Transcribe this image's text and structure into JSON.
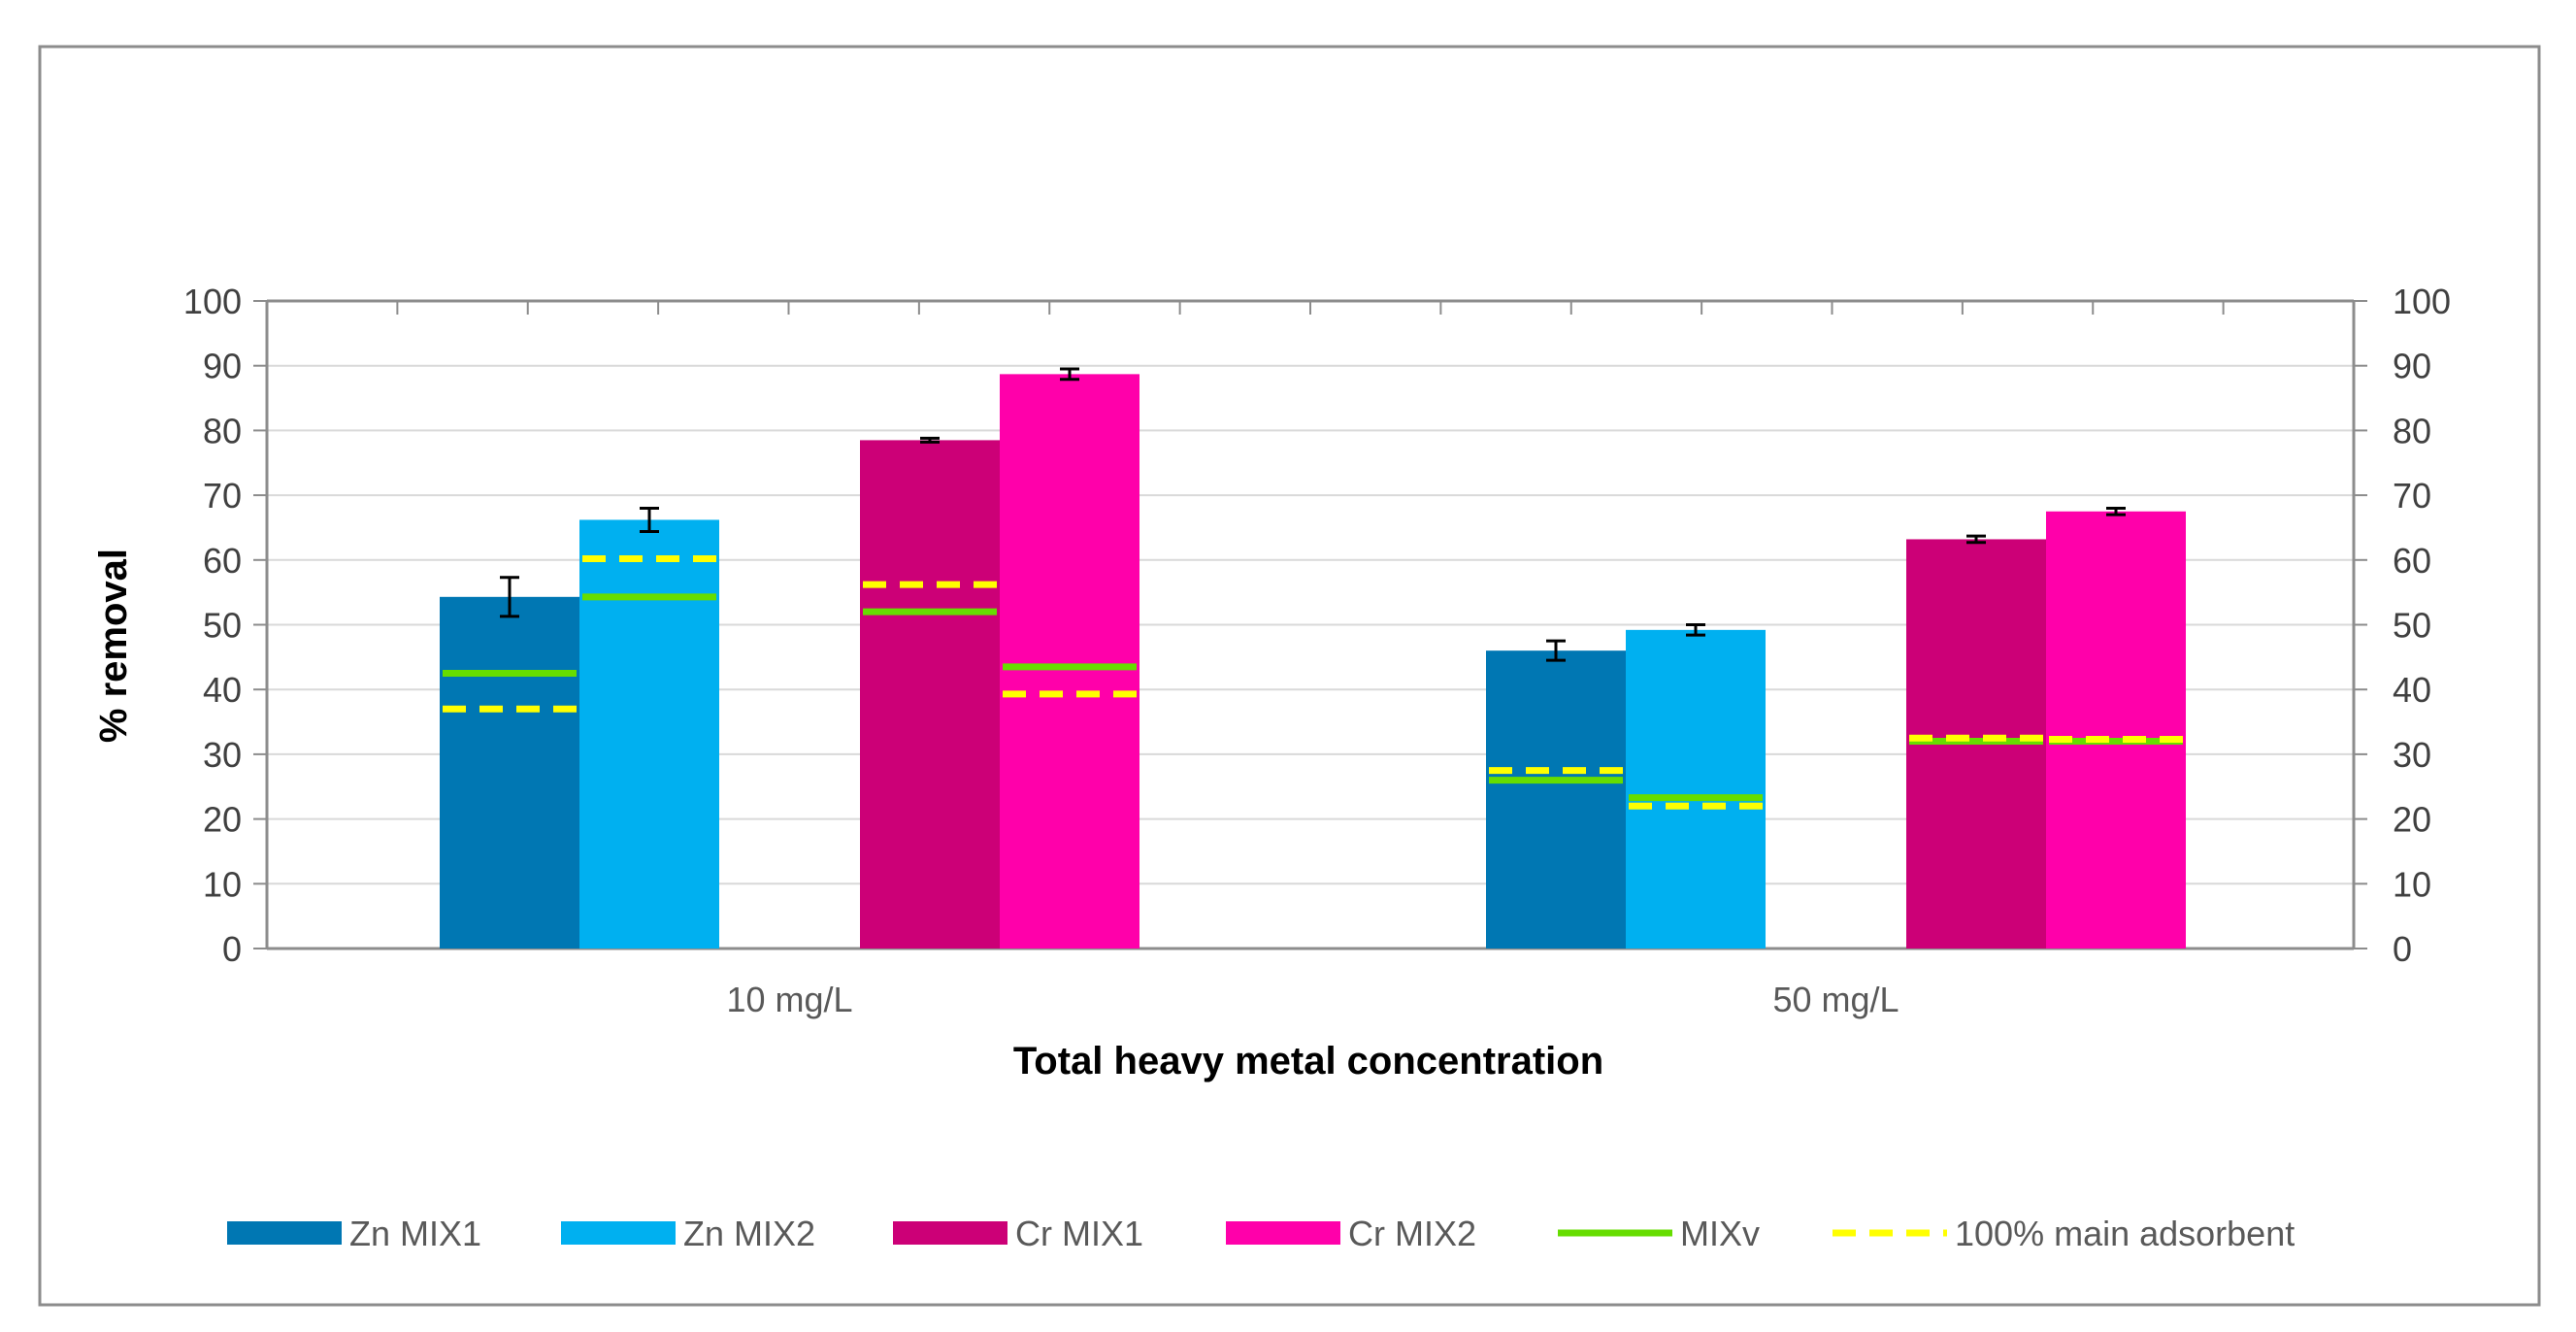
{
  "chart_data": {
    "type": "bar",
    "title": "",
    "xlabel": "Total heavy metal concentration",
    "ylabel": "% removal",
    "ylim": [
      0,
      100
    ],
    "yticks": [
      0,
      10,
      20,
      30,
      40,
      50,
      60,
      70,
      80,
      90,
      100
    ],
    "categories": [
      "10 mg/L",
      "50 mg/L"
    ],
    "grid": true,
    "legend_position": "bottom",
    "series": [
      {
        "name": "Zn MIX1",
        "color": "#0077B3",
        "values": [
          54.3,
          46.0
        ],
        "errors": [
          3.0,
          1.5
        ],
        "mixv": [
          42.5,
          26.0
        ],
        "main_adsorbent": [
          37.0,
          27.5
        ]
      },
      {
        "name": "Zn MIX2",
        "color": "#00B0F0",
        "values": [
          66.2,
          49.2
        ],
        "errors": [
          1.8,
          0.8
        ],
        "mixv": [
          54.3,
          23.3
        ],
        "main_adsorbent": [
          60.2,
          22.0
        ]
      },
      {
        "name": "Cr MIX1",
        "color": "#CC0077",
        "values": [
          78.5,
          63.2
        ],
        "errors": [
          0.3,
          0.5
        ],
        "mixv": [
          52.0,
          32.0
        ],
        "main_adsorbent": [
          56.2,
          32.5
        ]
      },
      {
        "name": "Cr MIX2",
        "color": "#FF00AA",
        "values": [
          88.7,
          67.5
        ],
        "errors": [
          0.8,
          0.5
        ],
        "mixv": [
          43.5,
          32.0
        ],
        "main_adsorbent": [
          39.3,
          32.3
        ]
      }
    ],
    "overlays": [
      {
        "name": "MIXv",
        "color": "#66DD00",
        "style": "solid"
      },
      {
        "name": "100% main adsorbent",
        "color": "#FFFF00",
        "style": "dashed"
      }
    ]
  }
}
